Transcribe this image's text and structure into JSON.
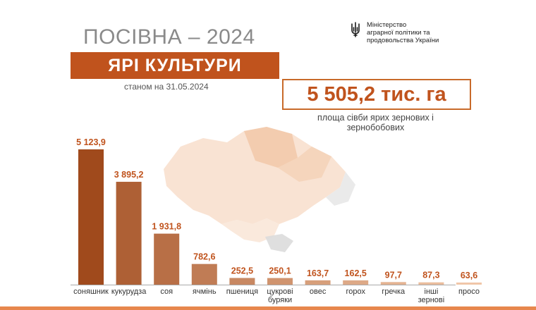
{
  "header": {
    "title": "ПОСІВНА – 2024",
    "banner": "ЯРІ КУЛЬТУРИ",
    "date_note": "станом на 31.05.2024"
  },
  "ministry": {
    "name_lines": [
      "Міністерство",
      "аграрної політики та",
      "продовольства України"
    ],
    "emblem_icon": "trident-icon"
  },
  "total": {
    "value": "5 505,2 тис. га",
    "note_lines": [
      "площа сівби ярих зернових і",
      "зернобобових"
    ]
  },
  "chart_data": {
    "type": "bar",
    "unit": "тис. га",
    "categories": [
      "соняшник",
      "кукурудза",
      "соя",
      "ячмінь",
      "пшениця",
      "цукрові буряки",
      "овес",
      "горох",
      "гречка",
      "інші зернові",
      "просо"
    ],
    "category_lines": [
      [
        "соняшник"
      ],
      [
        "кукурудза"
      ],
      [
        "соя"
      ],
      [
        "ячмінь"
      ],
      [
        "пшениця"
      ],
      [
        "цукрові",
        "буряки"
      ],
      [
        "овес"
      ],
      [
        "горох"
      ],
      [
        "гречка"
      ],
      [
        "інші",
        "зернові"
      ],
      [
        "просо"
      ]
    ],
    "values": [
      5123.9,
      3895.2,
      1931.8,
      782.6,
      252.5,
      250.1,
      163.7,
      162.5,
      97.7,
      87.3,
      63.6
    ],
    "labels": [
      "5 123,9",
      "3 895,2",
      "1 931,8",
      "782,6",
      "252,5",
      "250,1",
      "163,7",
      "162,5",
      "97,7",
      "87,3",
      "63,6"
    ],
    "ylim": [
      0,
      5123.9
    ],
    "grid": false,
    "colors": {
      "bar_dark": "#a04a1c",
      "bar_light": "#f0c6a8",
      "label": "#c0531d",
      "category": "#333333",
      "baseline": "#aaaaaa"
    }
  }
}
